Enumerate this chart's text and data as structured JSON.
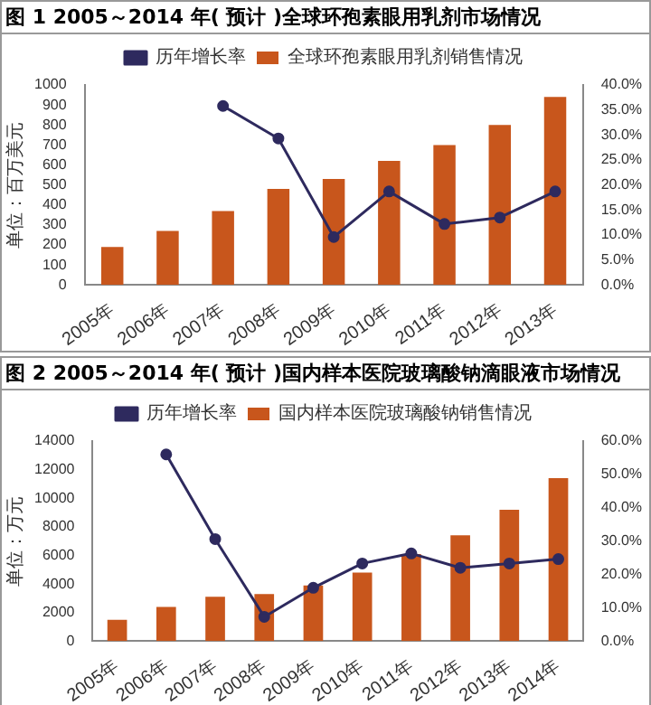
{
  "chart_data": [
    {
      "type": "bar",
      "title": "图 1  2005～2014 年( 预计 )全球环孢素眼用乳剂市场情况",
      "ylabel": "单位：百万美元",
      "categories": [
        "2005年",
        "2006年",
        "2007年",
        "2008年",
        "2009年",
        "2010年",
        "2011年",
        "2012年",
        "2013年"
      ],
      "series": [
        {
          "name": "全球环孢素眼用乳剂销售情况",
          "color": "#c8561c",
          "values": [
            190,
            270,
            370,
            480,
            530,
            620,
            700,
            800,
            940
          ]
        },
        {
          "name": "历年增长率",
          "type": "line",
          "axis": "y2",
          "color": "#2e2a5e",
          "values": [
            null,
            null,
            35.8,
            29.3,
            9.6,
            18.7,
            12.2,
            13.5,
            18.7
          ]
        }
      ],
      "ylim": [
        0,
        1000
      ],
      "yticks": [
        0,
        100,
        200,
        300,
        400,
        500,
        600,
        700,
        800,
        900,
        1000
      ],
      "y2lim": [
        0,
        40
      ],
      "y2ticks": [
        {
          "value": 0,
          "label": "0.0%"
        },
        {
          "value": 5,
          "label": "5.0%"
        },
        {
          "value": 10,
          "label": "10.0%"
        },
        {
          "value": 15,
          "label": "15.0%"
        },
        {
          "value": 20,
          "label": "20.0%"
        },
        {
          "value": 25,
          "label": "25.0%"
        },
        {
          "value": 30,
          "label": "30.0%"
        },
        {
          "value": 35,
          "label": "35.0%"
        },
        {
          "value": 40,
          "label": "40.0%"
        }
      ],
      "legend": "top",
      "grid": false,
      "marker": "circle"
    },
    {
      "type": "bar",
      "title": "图 2  2005～2014 年( 预计 )国内样本医院玻璃酸钠滴眼液市场情况",
      "ylabel": "单位：万元",
      "categories": [
        "2005年",
        "2006年",
        "2007年",
        "2008年",
        "2009年",
        "2010年",
        "2011年",
        "2012年",
        "2013年",
        "2014年"
      ],
      "series": [
        {
          "name": "国内样本医院玻璃酸钠销售情况",
          "color": "#c8561c",
          "values": [
            1500,
            2400,
            3100,
            3300,
            3900,
            4800,
            6100,
            7400,
            9200,
            11400
          ]
        },
        {
          "name": "历年增长率",
          "type": "line",
          "axis": "y2",
          "color": "#2e2a5e",
          "values": [
            null,
            56,
            30.6,
            7.3,
            16,
            23.3,
            26.3,
            22,
            23.3,
            24.6
          ]
        }
      ],
      "ylim": [
        0,
        14000
      ],
      "yticks": [
        0,
        2000,
        4000,
        6000,
        8000,
        10000,
        12000,
        14000
      ],
      "y2lim": [
        0,
        60
      ],
      "y2ticks": [
        {
          "value": 0,
          "label": "0.0%"
        },
        {
          "value": 10,
          "label": "10.0%"
        },
        {
          "value": 20,
          "label": "20.0%"
        },
        {
          "value": 30,
          "label": "30.0%"
        },
        {
          "value": 40,
          "label": "40.0%"
        },
        {
          "value": 50,
          "label": "50.0%"
        },
        {
          "value": 60,
          "label": "60.0%"
        }
      ],
      "legend": "top",
      "grid": false,
      "marker": "circle"
    }
  ]
}
